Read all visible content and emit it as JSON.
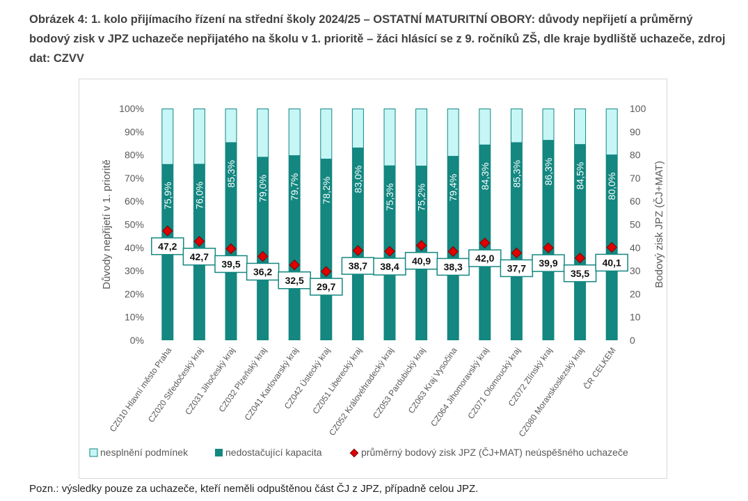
{
  "title": "Obrázek 4: 1. kolo přijímacího řízení na střední školy 2024/25 – OSTATNÍ MATURITNÍ OBORY: důvody nepřijetí a průměrný bodový zisk v JPZ uchazeče nepřijatého na školu v 1. prioritě – žáci hlásící se z 9. ročníků ZŠ, dle kraje bydliště uchazeče, zdroj dat: CZVV",
  "note": "Pozn.: výsledky pouze za uchazeče, kteří neměli odpuštěnou část ČJ z JPZ, případně celou JPZ.",
  "colors": {
    "dark": "#138780",
    "light": "#c6f6f6",
    "marker": "#e00000",
    "label_border": "#138780"
  },
  "chart_data": {
    "type": "bar",
    "stacked": true,
    "percent": true,
    "categories": [
      "CZ010 Hlavní město Praha",
      "CZ020 Středočeský kraj",
      "CZ031 Jihočeský kraj",
      "CZ032 Plzeňský kraj",
      "CZ041 Karlovarský kraj",
      "CZ042 Ústecký kraj",
      "CZ051 Liberecký kraj",
      "CZ052 Královéhradecký kraj",
      "CZ053 Pardubický kraj",
      "CZ063 Kraj Vysočina",
      "CZ064 Jihomoravský kraj",
      "CZ071 Olomoucký kraj",
      "CZ072 Zlínský kraj",
      "CZ080 Moravskoslezský kraj",
      "ČR CELKEM"
    ],
    "series": [
      {
        "name": "nesplnění podmínek",
        "axis": "left",
        "values": [
          24.1,
          24.0,
          14.7,
          21.0,
          20.3,
          21.8,
          17.0,
          24.7,
          24.8,
          20.6,
          15.7,
          14.7,
          13.7,
          15.5,
          20.0
        ]
      },
      {
        "name": "nedostačující kapacita",
        "axis": "left",
        "values": [
          75.9,
          76.0,
          85.3,
          79.0,
          79.7,
          78.2,
          83.0,
          75.3,
          75.2,
          79.4,
          84.3,
          85.3,
          86.3,
          84.5,
          80.0
        ],
        "data_labels": [
          "75,9%",
          "76,0%",
          "85,3%",
          "79,0%",
          "79,7%",
          "78,2%",
          "83,0%",
          "75,3%",
          "75,2%",
          "79,4%",
          "84,3%",
          "85,3%",
          "86,3%",
          "84,5%",
          "80,0%"
        ]
      },
      {
        "name": "průměrný bodový zisk JPZ (ČJ+MAT) neúspěšného uchazeče",
        "axis": "right",
        "type": "scatter",
        "values": [
          47.2,
          42.7,
          39.5,
          36.2,
          32.5,
          29.7,
          38.7,
          38.4,
          40.9,
          38.3,
          42.0,
          37.7,
          39.9,
          35.5,
          40.1
        ],
        "data_labels": [
          "47,2",
          "42,7",
          "39,5",
          "36,2",
          "32,5",
          "29,7",
          "38,7",
          "38,4",
          "40,9",
          "38,3",
          "42,0",
          "37,7",
          "39,9",
          "35,5",
          "40,1"
        ]
      }
    ],
    "ylabel": "Důvody nepřijetí v 1. prioritě",
    "ylabel_right": "Bodový zisk JPZ (ČJ+MAT)",
    "ylim": [
      0,
      100
    ],
    "y_ticks": [
      "0%",
      "10%",
      "20%",
      "30%",
      "40%",
      "50%",
      "60%",
      "70%",
      "80%",
      "90%",
      "100%"
    ],
    "ylim_right": [
      0,
      100
    ],
    "y_ticks_right": [
      "0",
      "10",
      "20",
      "30",
      "40",
      "50",
      "60",
      "70",
      "80",
      "90",
      "100"
    ],
    "legend_position": "bottom",
    "grid": false
  }
}
